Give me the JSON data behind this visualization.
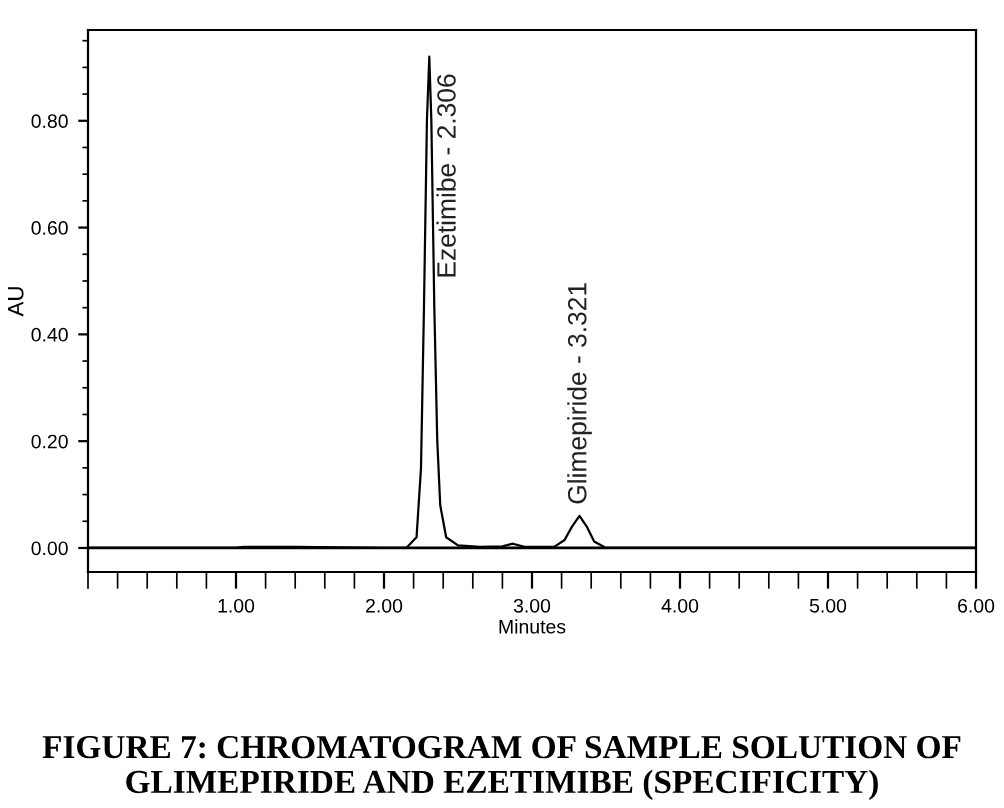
{
  "chart_data": {
    "type": "line",
    "title": "FIGURE 7: CHROMATOGRAM OF SAMPLE SOLUTION OF GLIMEPIRIDE AND EZETIMIBE (SPECIFICITY)",
    "xlabel": "Minutes",
    "ylabel": "AU",
    "x": [
      0,
      1.0,
      1.05,
      1.4,
      2.0,
      2.15,
      2.22,
      2.25,
      2.27,
      2.29,
      2.306,
      2.32,
      2.34,
      2.36,
      2.38,
      2.42,
      2.5,
      2.65,
      2.8,
      2.87,
      2.95,
      3.15,
      3.22,
      3.27,
      3.321,
      3.37,
      3.42,
      3.5,
      6.0
    ],
    "series": [
      {
        "color": "#000000",
        "values": [
          0,
          0,
          0.002,
          0.002,
          0,
          0,
          0.02,
          0.15,
          0.45,
          0.8,
          0.92,
          0.8,
          0.45,
          0.2,
          0.08,
          0.02,
          0.005,
          0.002,
          0.003,
          0.008,
          0.002,
          0.002,
          0.015,
          0.04,
          0.06,
          0.04,
          0.012,
          0,
          0
        ]
      }
    ],
    "annotations": [
      {
        "text": "Ezetimibe - 2.306",
        "x": 2.306,
        "y": 0.92
      },
      {
        "text": "Glimepiride - 3.321",
        "x": 3.321,
        "y": 0.06
      }
    ],
    "ref_lines": [
      {
        "axis": "y",
        "value": 0,
        "color": "#000000"
      }
    ],
    "xlim": [
      0,
      6
    ],
    "xticks": [
      {
        "value": 1,
        "label": "1.00"
      },
      {
        "value": 2,
        "label": "2.00"
      },
      {
        "value": 3,
        "label": "3.00"
      },
      {
        "value": 4,
        "label": "4.00"
      },
      {
        "value": 5,
        "label": "5.00"
      },
      {
        "value": 6,
        "label": "6.00"
      }
    ],
    "ylim": [
      -0.045,
      0.97
    ],
    "yticks": [
      {
        "value": 0,
        "label": "0.00"
      },
      {
        "value": 0.2,
        "label": "0.20"
      },
      {
        "value": 0.4,
        "label": "0.40"
      },
      {
        "value": 0.6,
        "label": "0.60"
      },
      {
        "value": 0.8,
        "label": "0.80"
      }
    ],
    "grid": false,
    "legend": false,
    "marker": "none",
    "line_style": "solid"
  }
}
